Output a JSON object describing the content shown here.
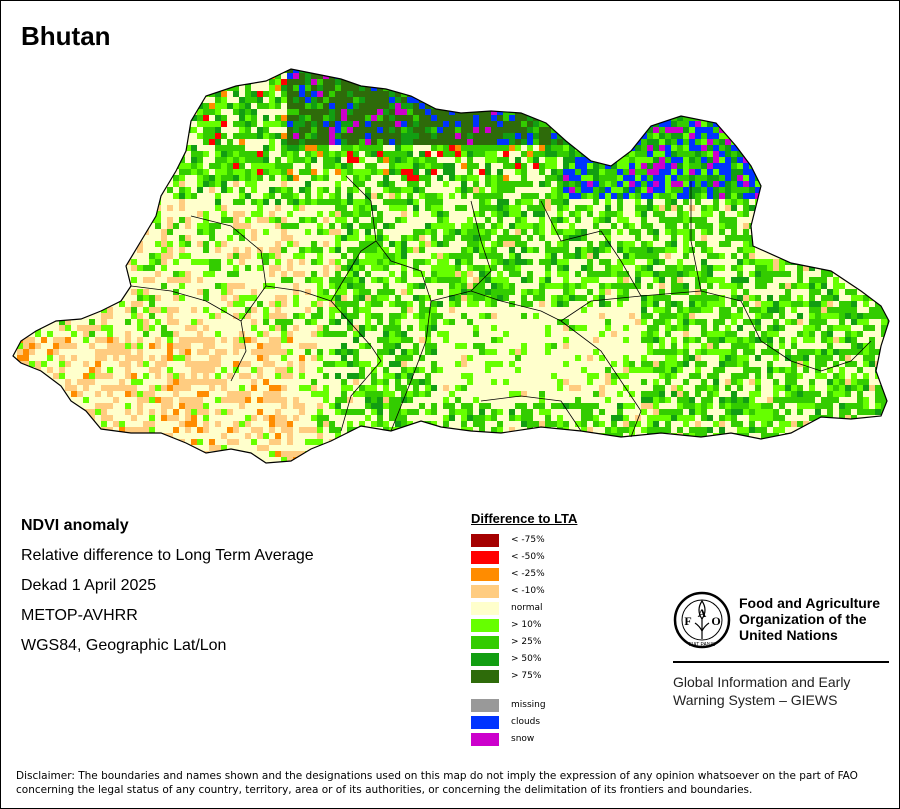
{
  "map": {
    "title": "Bhutan"
  },
  "info": {
    "indicator": "NDVI anomaly",
    "description": "Relative difference to Long Term Average",
    "period": "Dekad 1 April 2025",
    "sensor": "METOP-AVHRR",
    "projection": "WGS84, Geographic Lat/Lon"
  },
  "legend": {
    "title": "Difference to LTA",
    "classes": [
      {
        "label": "< -75%",
        "color": "#a50000"
      },
      {
        "label": "< -50%",
        "color": "#ff0000"
      },
      {
        "label": "< -25%",
        "color": "#ff8c00"
      },
      {
        "label": "< -10%",
        "color": "#ffcc80"
      },
      {
        "label": "normal",
        "color": "#ffffcc"
      },
      {
        "label": "> 10%",
        "color": "#66ff00"
      },
      {
        "label": "> 25%",
        "color": "#33cc00"
      },
      {
        "label": "> 50%",
        "color": "#129e12"
      },
      {
        "label": "> 75%",
        "color": "#2e6b0a"
      }
    ],
    "special": [
      {
        "label": "missing",
        "color": "#999999"
      },
      {
        "label": "clouds",
        "color": "#0033ff"
      },
      {
        "label": "snow",
        "color": "#cc00cc"
      }
    ]
  },
  "organization": {
    "logo_letters": "FAO",
    "logo_motto": "FIAT PANIS",
    "name": "Food and Agriculture Organization of the United Nations",
    "system": "Global Information and Early Warning System – GIEWS"
  },
  "disclaimer": "Disclaimer: The boundaries and names shown and the designations used on this map do not imply the expression of any opinion whatsoever on the part of FAO concerning the legal status of any country, territory, area or of its authorities, or concerning the delimitation of its frontiers and boundaries."
}
